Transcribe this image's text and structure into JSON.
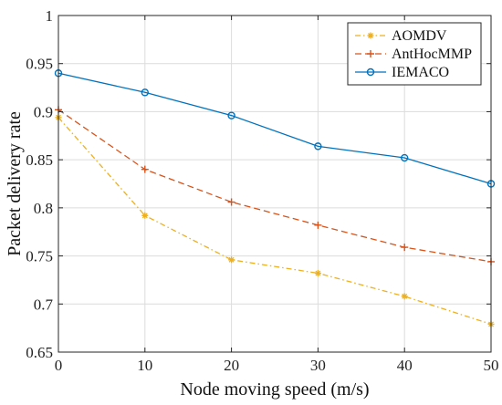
{
  "chart_data": {
    "type": "line",
    "title": "",
    "xlabel": "Node moving speed (m/s)",
    "ylabel": "Packet delivery rate",
    "xlim": [
      0,
      50
    ],
    "ylim": [
      0.65,
      1
    ],
    "x": [
      0,
      10,
      20,
      30,
      40,
      50
    ],
    "x_ticks": [
      "0",
      "10",
      "20",
      "30",
      "40",
      "50"
    ],
    "y_ticks": [
      "0.65",
      "0.7",
      "0.75",
      "0.8",
      "0.85",
      "0.9",
      "0.95",
      "1"
    ],
    "grid": true,
    "legend_position": "top-right",
    "series": [
      {
        "name": "AOMDV",
        "values": [
          0.894,
          0.792,
          0.746,
          0.732,
          0.708,
          0.679
        ],
        "color": "#EDB120",
        "line_style": "dash-dot",
        "marker": "asterisk"
      },
      {
        "name": "AntHocMMP",
        "values": [
          0.902,
          0.84,
          0.806,
          0.782,
          0.759,
          0.744
        ],
        "color": "#D95319",
        "line_style": "dashed",
        "marker": "plus"
      },
      {
        "name": "IEMACO",
        "values": [
          0.94,
          0.92,
          0.896,
          0.864,
          0.852,
          0.825
        ],
        "color": "#0072BD",
        "line_style": "solid",
        "marker": "circle"
      }
    ]
  }
}
